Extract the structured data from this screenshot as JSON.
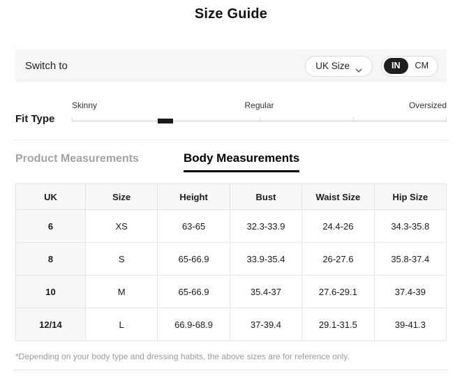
{
  "title": "Size Guide",
  "switch_bar": {
    "label": "Switch to",
    "size_dropdown_value": "UK Size",
    "unit_toggle": {
      "options": [
        "IN",
        "CM"
      ],
      "selected": "IN"
    }
  },
  "fit_type": {
    "label": "Fit Type",
    "scale_labels": [
      "Skinny",
      "Regular",
      "Oversized"
    ],
    "marker_position_pct": 25
  },
  "tabs": [
    {
      "label": "Product Measurements",
      "active": false
    },
    {
      "label": "Body Measurements",
      "active": true
    }
  ],
  "table": {
    "headers": [
      "UK",
      "Size",
      "Height",
      "Bust",
      "Waist Size",
      "Hip Size"
    ],
    "rows": [
      [
        "6",
        "XS",
        "63-65",
        "32.3-33.9",
        "24.4-26",
        "34.3-35.8"
      ],
      [
        "8",
        "S",
        "65-66.9",
        "33.9-35.4",
        "26-27.6",
        "35.8-37.4"
      ],
      [
        "10",
        "M",
        "65-66.9",
        "35.4-37",
        "27.6-29.1",
        "37.4-39"
      ],
      [
        "12/14",
        "L",
        "66.9-68.9",
        "37-39.4",
        "29.1-31.5",
        "39-41.3"
      ]
    ]
  },
  "footnote": "*Depending on your body type and dressing habits, the above sizes are for reference only.",
  "colors": {
    "accent": "#1a1a1a",
    "bar_background": "#f6f6f6",
    "table_header_background": "#f8f8f8",
    "border": "#e5e5e5",
    "muted_text": "#9b9b9b"
  }
}
